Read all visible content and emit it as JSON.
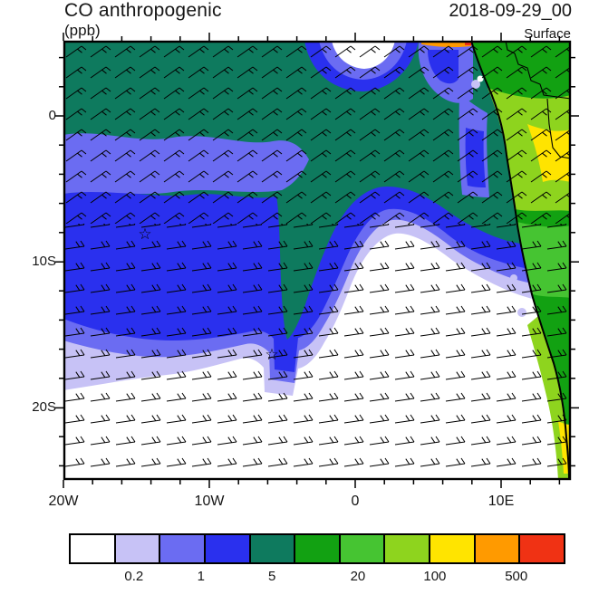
{
  "palette": {
    "teal": "#0e7a5e",
    "green": "#12a112",
    "green2": "#46c432",
    "yellowgreen": "#8ed41e",
    "yellow": "#ffe400",
    "orange": "#ff9a00",
    "red": "#f03214",
    "darkblue": "#2a30ee",
    "medblue": "#6b6cf2",
    "lavender": "#c7c2f6"
  },
  "header": {
    "title": "CO anthropogenic",
    "datetime": "2018-09-29_00",
    "units": "(ppb)",
    "level": "Surface"
  },
  "map": {
    "x_labels": [
      "20W",
      "10W",
      "0",
      "10E"
    ],
    "y_labels": [
      "0",
      "10S",
      "20S"
    ]
  },
  "colorbar": {
    "colors": [
      "#ffffff",
      "#c7c2f6",
      "#6b6cf2",
      "#2a30ee",
      "#0e7a5e",
      "#12a112",
      "#46c432",
      "#8ed41e",
      "#ffe400",
      "#ff9a00",
      "#f03214"
    ],
    "labels": [
      "0.2",
      "1",
      "5",
      "20",
      "100",
      "500"
    ],
    "label_positions_pct": [
      13.1,
      26.6,
      40.9,
      58.2,
      73.7,
      90.1
    ]
  },
  "chart_data": {
    "type": "heatmap",
    "title": "CO anthropogenic",
    "units_label": "(ppb)",
    "valid_time": "2018-09-29_00",
    "level": "Surface",
    "projection": "lat-lon map of SE Atlantic and southwestern Africa",
    "x_axis": {
      "ticks": [
        "20W",
        "10W",
        "0",
        "10E"
      ],
      "range_deg_lon": [
        -20,
        15
      ]
    },
    "y_axis": {
      "ticks": [
        "0",
        "10S",
        "20S"
      ],
      "range_deg_lat": [
        5,
        -25
      ]
    },
    "colorbar": {
      "labeled_levels_ppb": [
        0.2,
        1,
        5,
        20,
        100,
        500
      ],
      "n_colors": 11,
      "colors": [
        "#ffffff",
        "#c7c2f6",
        "#6b6cf2",
        "#2a30ee",
        "#0e7a5e",
        "#12a112",
        "#46c432",
        "#8ed41e",
        "#ffe400",
        "#ff9a00",
        "#f03214"
      ]
    },
    "overlays": {
      "wind_barbs": true,
      "coastline": "Gulf of Guinea to Namibia coast with inland country borders",
      "markers": [
        {
          "type": "open-star",
          "lon_est": "14W",
          "lat_est": "8S"
        },
        {
          "type": "open-star",
          "lon_est": "6W",
          "lat_est": "16S"
        }
      ]
    },
    "field_regions_est": [
      {
        "region": "northern/central ocean (0-8S)",
        "value_ppb": "5-20 (teal)"
      },
      {
        "region": "mid-ocean band and two scalloped arcs",
        "value_ppb": "0.2-5 (lavender to dark blue gradient)"
      },
      {
        "region": "southern ocean interior (south of arcs)",
        "value_ppb": "< 0.2 (white)"
      },
      {
        "region": "African land, east side",
        "value_ppb": "20-500 (green / yellow-green / yellow, orange-red hotspot near top coast)"
      }
    ]
  }
}
